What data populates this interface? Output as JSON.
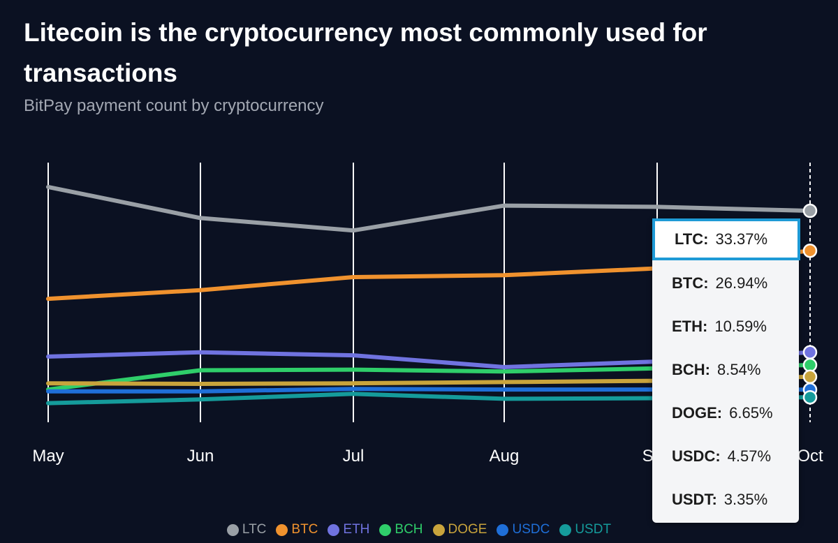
{
  "header": {
    "title": "Litecoin is the cryptocurrency most commonly used for transactions",
    "subtitle": "BitPay payment count by cryptocurrency"
  },
  "chart_data": {
    "type": "line",
    "title": "Litecoin is the cryptocurrency most commonly used for transactions",
    "subtitle": "BitPay payment count by cryptocurrency",
    "xlabel": "",
    "ylabel": "",
    "unit": "%",
    "categories": [
      "May",
      "Jun",
      "Jul",
      "Aug",
      "Sep",
      "Oct"
    ],
    "ylim": [
      0,
      40
    ],
    "grid": "vertical",
    "legend": "bottom",
    "series": [
      {
        "name": "LTC",
        "color": "#9aa0a6",
        "values": [
          37.2,
          32.2,
          30.2,
          34.2,
          34.0,
          33.37
        ]
      },
      {
        "name": "BTC",
        "color": "#f0922e",
        "values": [
          19.2,
          20.6,
          22.7,
          23.0,
          24.1,
          26.94
        ]
      },
      {
        "name": "ETH",
        "color": "#7073e0",
        "values": [
          9.9,
          10.6,
          10.1,
          8.2,
          9.1,
          10.59
        ]
      },
      {
        "name": "BCH",
        "color": "#2fce6a",
        "values": [
          4.6,
          7.7,
          7.8,
          7.5,
          8.0,
          8.54
        ]
      },
      {
        "name": "DOGE",
        "color": "#c9a43c",
        "values": [
          5.6,
          5.5,
          5.6,
          5.8,
          6.0,
          6.65
        ]
      },
      {
        "name": "USDC",
        "color": "#1f6fd8",
        "values": [
          4.3,
          4.3,
          4.7,
          4.6,
          4.6,
          4.57
        ]
      },
      {
        "name": "USDT",
        "color": "#159b9b",
        "values": [
          2.4,
          3.0,
          3.9,
          3.1,
          3.2,
          3.35
        ]
      }
    ],
    "tooltip": {
      "category": "Oct",
      "rows": [
        {
          "name": "LTC:",
          "value": "33.37%"
        },
        {
          "name": "BTC:",
          "value": "26.94%"
        },
        {
          "name": "ETH:",
          "value": "10.59%"
        },
        {
          "name": "BCH:",
          "value": "8.54%"
        },
        {
          "name": "DOGE:",
          "value": "6.65%"
        },
        {
          "name": "USDC:",
          "value": "4.57%"
        },
        {
          "name": "USDT:",
          "value": "3.35%"
        }
      ]
    }
  }
}
